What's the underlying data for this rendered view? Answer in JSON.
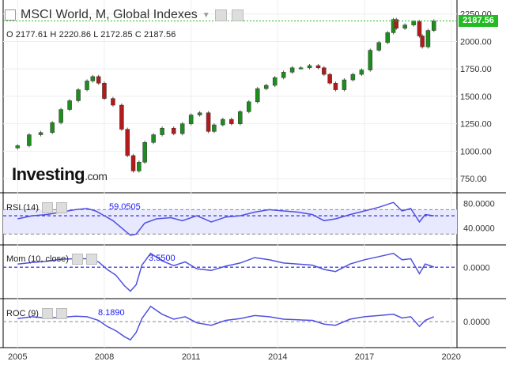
{
  "header": {
    "title": "MSCI World, M, Global Indexes",
    "ohlc": "O 2177.61  H 2220.86  L 2172.85  C 2187.56"
  },
  "logo": {
    "brand": "Investing",
    "domain": ".com"
  },
  "last_price": "2187.56",
  "colors": {
    "up": "#1e8c1e",
    "down": "#b31b1b",
    "indicator": "#5050e0",
    "price_line": "#22bb22",
    "rsi_band": "#e8e8ff"
  },
  "chart_data": [
    {
      "type": "candlestick",
      "title": "MSCI World, M, Global Indexes",
      "x_ticks": [
        "2005",
        "2008",
        "2011",
        "2014",
        "2017",
        "2020"
      ],
      "y_ticks": [
        "750.00",
        "1000.00",
        "1250.00",
        "1500.00",
        "1750.00",
        "2000.00",
        "2250.00"
      ],
      "ylim": [
        650,
        2320
      ],
      "xlim": [
        2004.5,
        2020.2
      ],
      "series": [
        {
          "t": [
            2005.0,
            2005.4,
            2005.8,
            2006.2,
            2006.5,
            2006.8,
            2007.1,
            2007.4,
            2007.6,
            2007.8,
            2008.0,
            2008.3,
            2008.6,
            2008.8,
            2009.0,
            2009.2,
            2009.4,
            2009.7,
            2010.0,
            2010.4,
            2010.7,
            2011.0,
            2011.3,
            2011.6,
            2011.8,
            2012.1,
            2012.4,
            2012.7,
            2013.0,
            2013.3,
            2013.6,
            2013.9,
            2014.2,
            2014.5,
            2014.8,
            2015.1,
            2015.4,
            2015.6,
            2015.8,
            2016.0,
            2016.3,
            2016.6,
            2016.9,
            2017.2,
            2017.5,
            2017.8,
            2018.0,
            2018.1,
            2018.4,
            2018.7,
            2018.9,
            2019.0,
            2019.2,
            2019.4
          ],
          "close": [
            1050,
            1150,
            1170,
            1260,
            1380,
            1460,
            1560,
            1640,
            1680,
            1620,
            1480,
            1420,
            1200,
            960,
            820,
            900,
            1080,
            1150,
            1210,
            1160,
            1250,
            1330,
            1350,
            1180,
            1240,
            1290,
            1250,
            1360,
            1450,
            1570,
            1600,
            1670,
            1720,
            1760,
            1760,
            1780,
            1760,
            1700,
            1620,
            1560,
            1650,
            1700,
            1740,
            1920,
            1990,
            2080,
            2200,
            2120,
            2150,
            2180,
            2050,
            1950,
            2100,
            2187
          ]
        }
      ]
    },
    {
      "type": "line",
      "name": "RSI (14)",
      "value_label": "59.0505",
      "y_ticks": [
        "40.0000",
        "80.0000"
      ],
      "ylim": [
        20,
        90
      ],
      "bands": [
        30,
        70
      ],
      "x": [
        2005.0,
        2005.5,
        2006.0,
        2006.5,
        2007.0,
        2007.4,
        2007.7,
        2008.0,
        2008.3,
        2008.6,
        2008.9,
        2009.1,
        2009.4,
        2009.8,
        2010.3,
        2010.7,
        2011.2,
        2011.7,
        2012.2,
        2012.7,
        2013.2,
        2013.7,
        2014.2,
        2014.7,
        2015.2,
        2015.6,
        2016.0,
        2016.5,
        2017.0,
        2017.5,
        2018.0,
        2018.3,
        2018.6,
        2018.9,
        2019.1,
        2019.4
      ],
      "values": [
        55,
        60,
        62,
        66,
        70,
        72,
        68,
        60,
        52,
        40,
        28,
        30,
        48,
        55,
        57,
        52,
        60,
        50,
        58,
        60,
        66,
        70,
        68,
        66,
        62,
        52,
        55,
        62,
        68,
        74,
        82,
        68,
        72,
        50,
        62,
        60
      ]
    },
    {
      "type": "line",
      "name": "Mom (10, close)",
      "value_label": "3.5500",
      "y_ticks": [
        "0.0000"
      ],
      "ylim": [
        -500,
        330
      ],
      "baseline": 0,
      "x": [
        2005.0,
        2005.5,
        2006.0,
        2006.5,
        2007.0,
        2007.4,
        2007.8,
        2008.1,
        2008.4,
        2008.7,
        2008.9,
        2009.1,
        2009.3,
        2009.6,
        2010.0,
        2010.4,
        2010.8,
        2011.2,
        2011.7,
        2012.2,
        2012.7,
        2013.2,
        2013.7,
        2014.2,
        2014.7,
        2015.2,
        2015.6,
        2016.0,
        2016.5,
        2017.0,
        2017.5,
        2018.0,
        2018.3,
        2018.6,
        2018.9,
        2019.1,
        2019.4
      ],
      "values": [
        60,
        90,
        110,
        150,
        160,
        160,
        100,
        -40,
        -150,
        -350,
        -450,
        -330,
        40,
        260,
        120,
        30,
        100,
        -30,
        -60,
        20,
        80,
        180,
        140,
        80,
        60,
        40,
        -40,
        -80,
        60,
        140,
        200,
        260,
        140,
        160,
        -120,
        60,
        4
      ]
    },
    {
      "type": "line",
      "name": "ROC (9)",
      "value_label": "8.1890",
      "y_ticks": [
        "0.0000"
      ],
      "ylim": [
        -35,
        30
      ],
      "baseline": 0,
      "x": [
        2005.0,
        2005.5,
        2006.0,
        2006.5,
        2007.0,
        2007.4,
        2007.8,
        2008.1,
        2008.4,
        2008.7,
        2008.9,
        2009.1,
        2009.3,
        2009.6,
        2010.0,
        2010.4,
        2010.8,
        2011.2,
        2011.7,
        2012.2,
        2012.7,
        2013.2,
        2013.7,
        2014.2,
        2014.7,
        2015.2,
        2015.6,
        2016.0,
        2016.5,
        2017.0,
        2017.5,
        2018.0,
        2018.3,
        2018.6,
        2018.9,
        2019.1,
        2019.4
      ],
      "values": [
        5,
        8,
        6,
        7,
        9,
        8,
        2,
        -8,
        -15,
        -25,
        -30,
        -18,
        5,
        25,
        12,
        4,
        8,
        -2,
        -6,
        2,
        5,
        10,
        8,
        4,
        3,
        2,
        -4,
        -6,
        4,
        8,
        10,
        12,
        6,
        8,
        -8,
        2,
        8
      ]
    }
  ]
}
